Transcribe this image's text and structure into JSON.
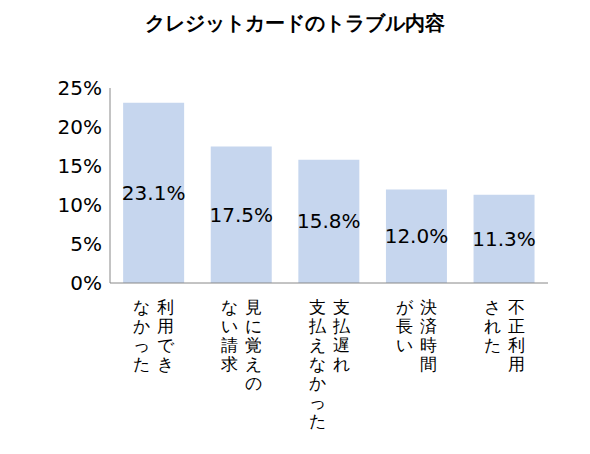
{
  "chart_data": {
    "type": "bar",
    "title": "クレジットカードのトラブル内容",
    "categories": [
      "利用でき\nなかった",
      "見に覚えの\nない請求",
      "支払遅れ\n支払えなかった",
      "決済時間\nが長い",
      "不正利用\nされた"
    ],
    "values": [
      23.1,
      17.5,
      15.8,
      12.0,
      11.3
    ],
    "value_labels": [
      "23.1%",
      "17.5%",
      "15.8%",
      "12.0%",
      "11.3%"
    ],
    "data_labels": true,
    "color": "#c6d6ee",
    "ylim": [
      0,
      25
    ],
    "yticks": [
      {
        "value": 0,
        "label": "0%"
      },
      {
        "value": 5,
        "label": "5%"
      },
      {
        "value": 10,
        "label": "10%"
      },
      {
        "value": 15,
        "label": "15%"
      },
      {
        "value": 20,
        "label": "20%"
      },
      {
        "value": 25,
        "label": "25%"
      }
    ],
    "grid": false
  }
}
